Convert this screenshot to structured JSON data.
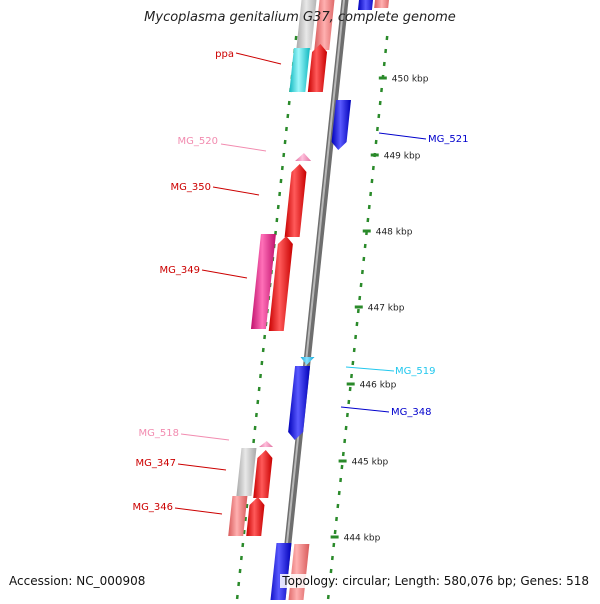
{
  "title": "Mycoplasma genitalium G37, complete genome",
  "footer": {
    "accession": "Accession: NC_000908",
    "summary": "Topology: circular; Length: 580,076 bp; Genes: 518"
  },
  "colors": {
    "red": "#ee1111",
    "pink_label": "#f28cb0",
    "magenta": "#f0208c",
    "cyan": "#22e5ee",
    "blue": "#1616ee",
    "grey": "#c4c4c4",
    "salmon": "#f08080",
    "backbone": "#8a8a8a",
    "tick": "#2a8a2a"
  },
  "ticks": [
    "450 kbp",
    "449 kbp",
    "448 kbp",
    "447 kbp",
    "446 kbp",
    "445 kbp",
    "444 kbp"
  ],
  "gene_labels": [
    {
      "text": "ppa",
      "color": "#cc0000"
    },
    {
      "text": "MG_521",
      "color": "#0000cc"
    },
    {
      "text": "MG_520",
      "color": "#f28cb0"
    },
    {
      "text": "MG_350",
      "color": "#cc0000"
    },
    {
      "text": "MG_349",
      "color": "#cc0000"
    },
    {
      "text": "MG_519",
      "color": "#22c8ee"
    },
    {
      "text": "MG_348",
      "color": "#0000cc"
    },
    {
      "text": "MG_518",
      "color": "#f28cb0"
    },
    {
      "text": "MG_347",
      "color": "#cc0000"
    },
    {
      "text": "MG_346",
      "color": "#cc0000"
    }
  ]
}
